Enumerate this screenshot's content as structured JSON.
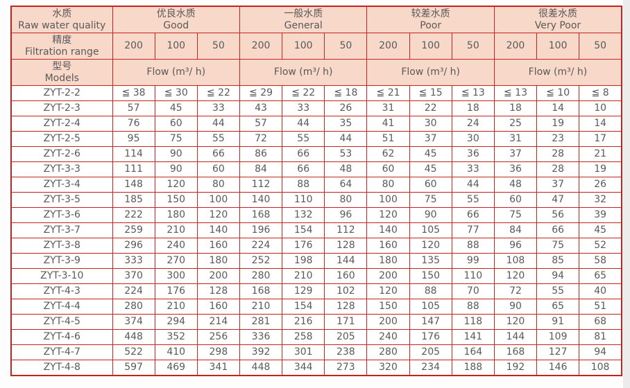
{
  "colors": {
    "grid_red": "#c5231d",
    "header_fill": "#f8d8c9",
    "text_gray": "#595959",
    "cell_white": "#ffffff",
    "gutter_gray": "#ececec"
  },
  "header": {
    "quality_label": {
      "zh": "水质",
      "en": "Raw water quality"
    },
    "filtration_label": {
      "zh": "精度",
      "en": "Filtration range"
    },
    "models_label": {
      "zh": "型号",
      "en": "Models"
    },
    "flow_label": "Flow (m³/ h)",
    "quality_groups": [
      {
        "zh": "优良水质",
        "en": "Good"
      },
      {
        "zh": "一般水质",
        "en": "General"
      },
      {
        "zh": "较差水质",
        "en": "Poor"
      },
      {
        "zh": "很差水质",
        "en": "Very Poor"
      }
    ],
    "filtration_values": [
      "200",
      "100",
      "50"
    ]
  },
  "rows": [
    {
      "model": "ZYT-2-2",
      "values": [
        "≦ 38",
        "≦ 30",
        "≦ 22",
        "≦ 29",
        "≦ 22",
        "≦ 18",
        "≦ 21",
        "≦ 15",
        "≦ 13",
        "≦ 13",
        "≦ 10",
        "≦ 8"
      ]
    },
    {
      "model": "ZYT-2-3",
      "values": [
        "57",
        "45",
        "33",
        "43",
        "33",
        "26",
        "31",
        "22",
        "18",
        "18",
        "14",
        "10"
      ]
    },
    {
      "model": "ZYT-2-4",
      "values": [
        "76",
        "60",
        "44",
        "57",
        "44",
        "35",
        "41",
        "30",
        "24",
        "25",
        "19",
        "14"
      ]
    },
    {
      "model": "ZYT-2-5",
      "values": [
        "95",
        "75",
        "55",
        "72",
        "55",
        "44",
        "51",
        "37",
        "30",
        "31",
        "23",
        "17"
      ]
    },
    {
      "model": "ZYT-2-6",
      "values": [
        "114",
        "90",
        "66",
        "86",
        "66",
        "53",
        "62",
        "45",
        "36",
        "37",
        "28",
        "21"
      ]
    },
    {
      "model": "ZYT-3-3",
      "values": [
        "111",
        "90",
        "60",
        "84",
        "66",
        "48",
        "60",
        "45",
        "33",
        "36",
        "28",
        "19"
      ]
    },
    {
      "model": "ZYT-3-4",
      "values": [
        "148",
        "120",
        "80",
        "112",
        "88",
        "64",
        "80",
        "60",
        "44",
        "48",
        "37",
        "26"
      ]
    },
    {
      "model": "ZYT-3-5",
      "values": [
        "185",
        "150",
        "100",
        "140",
        "110",
        "80",
        "100",
        "75",
        "55",
        "60",
        "47",
        "32"
      ]
    },
    {
      "model": "ZYT-3-6",
      "values": [
        "222",
        "180",
        "120",
        "168",
        "132",
        "96",
        "120",
        "90",
        "66",
        "75",
        "56",
        "39"
      ]
    },
    {
      "model": "ZYT-3-7",
      "values": [
        "259",
        "210",
        "140",
        "196",
        "154",
        "112",
        "140",
        "105",
        "77",
        "84",
        "66",
        "45"
      ]
    },
    {
      "model": "ZYT-3-8",
      "values": [
        "296",
        "240",
        "160",
        "224",
        "176",
        "128",
        "160",
        "120",
        "88",
        "96",
        "75",
        "52"
      ]
    },
    {
      "model": "ZYT-3-9",
      "values": [
        "333",
        "270",
        "180",
        "252",
        "198",
        "144",
        "180",
        "135",
        "99",
        "108",
        "85",
        "58"
      ]
    },
    {
      "model": "ZYT-3-10",
      "values": [
        "370",
        "300",
        "200",
        "280",
        "210",
        "160",
        "200",
        "150",
        "110",
        "120",
        "94",
        "65"
      ]
    },
    {
      "model": "ZYT-4-3",
      "values": [
        "224",
        "176",
        "128",
        "168",
        "129",
        "102",
        "120",
        "88",
        "70",
        "72",
        "55",
        "40"
      ]
    },
    {
      "model": "ZYT-4-4",
      "values": [
        "280",
        "210",
        "160",
        "210",
        "154",
        "128",
        "150",
        "105",
        "88",
        "90",
        "65",
        "51"
      ]
    },
    {
      "model": "ZYT-4-5",
      "values": [
        "374",
        "294",
        "214",
        "281",
        "216",
        "171",
        "200",
        "147",
        "118",
        "120",
        "91",
        "68"
      ]
    },
    {
      "model": "ZYT-4-6",
      "values": [
        "448",
        "352",
        "256",
        "336",
        "258",
        "205",
        "240",
        "176",
        "141",
        "144",
        "109",
        "81"
      ]
    },
    {
      "model": "ZYT-4-7",
      "values": [
        "522",
        "410",
        "298",
        "392",
        "301",
        "238",
        "280",
        "205",
        "164",
        "168",
        "127",
        "94"
      ]
    },
    {
      "model": "ZYT-4-8",
      "values": [
        "597",
        "469",
        "341",
        "448",
        "344",
        "273",
        "320",
        "234",
        "188",
        "192",
        "146",
        "108"
      ]
    }
  ],
  "chart_data": {
    "type": "table",
    "title": "ZYT model flow rates by raw water quality and filtration range",
    "row_header_label": "型号 Models",
    "unit": "Flow (m³/ h)",
    "column_groups": [
      {
        "group": "优良水质 Good",
        "subcolumns": [
          200,
          100,
          50
        ]
      },
      {
        "group": "一般水质 General",
        "subcolumns": [
          200,
          100,
          50
        ]
      },
      {
        "group": "较差水质 Poor",
        "subcolumns": [
          200,
          100,
          50
        ]
      },
      {
        "group": "很差水质 Very Poor",
        "subcolumns": [
          200,
          100,
          50
        ]
      }
    ],
    "rows": [
      {
        "model": "ZYT-2-2",
        "flows": [
          "≤38",
          "≤30",
          "≤22",
          "≤29",
          "≤22",
          "≤18",
          "≤21",
          "≤15",
          "≤13",
          "≤13",
          "≤10",
          "≤8"
        ]
      },
      {
        "model": "ZYT-2-3",
        "flows": [
          57,
          45,
          33,
          43,
          33,
          26,
          31,
          22,
          18,
          18,
          14,
          10
        ]
      },
      {
        "model": "ZYT-2-4",
        "flows": [
          76,
          60,
          44,
          57,
          44,
          35,
          41,
          30,
          24,
          25,
          19,
          14
        ]
      },
      {
        "model": "ZYT-2-5",
        "flows": [
          95,
          75,
          55,
          72,
          55,
          44,
          51,
          37,
          30,
          31,
          23,
          17
        ]
      },
      {
        "model": "ZYT-2-6",
        "flows": [
          114,
          90,
          66,
          86,
          66,
          53,
          62,
          45,
          36,
          37,
          28,
          21
        ]
      },
      {
        "model": "ZYT-3-3",
        "flows": [
          111,
          90,
          60,
          84,
          66,
          48,
          60,
          45,
          33,
          36,
          28,
          19
        ]
      },
      {
        "model": "ZYT-3-4",
        "flows": [
          148,
          120,
          80,
          112,
          88,
          64,
          80,
          60,
          44,
          48,
          37,
          26
        ]
      },
      {
        "model": "ZYT-3-5",
        "flows": [
          185,
          150,
          100,
          140,
          110,
          80,
          100,
          75,
          55,
          60,
          47,
          32
        ]
      },
      {
        "model": "ZYT-3-6",
        "flows": [
          222,
          180,
          120,
          168,
          132,
          96,
          120,
          90,
          66,
          75,
          56,
          39
        ]
      },
      {
        "model": "ZYT-3-7",
        "flows": [
          259,
          210,
          140,
          196,
          154,
          112,
          140,
          105,
          77,
          84,
          66,
          45
        ]
      },
      {
        "model": "ZYT-3-8",
        "flows": [
          296,
          240,
          160,
          224,
          176,
          128,
          160,
          120,
          88,
          96,
          75,
          52
        ]
      },
      {
        "model": "ZYT-3-9",
        "flows": [
          333,
          270,
          180,
          252,
          198,
          144,
          180,
          135,
          99,
          108,
          85,
          58
        ]
      },
      {
        "model": "ZYT-3-10",
        "flows": [
          370,
          300,
          200,
          280,
          210,
          160,
          200,
          150,
          110,
          120,
          94,
          65
        ]
      },
      {
        "model": "ZYT-4-3",
        "flows": [
          224,
          176,
          128,
          168,
          129,
          102,
          120,
          88,
          70,
          72,
          55,
          40
        ]
      },
      {
        "model": "ZYT-4-4",
        "flows": [
          280,
          210,
          160,
          210,
          154,
          128,
          150,
          105,
          88,
          90,
          65,
          51
        ]
      },
      {
        "model": "ZYT-4-5",
        "flows": [
          374,
          294,
          214,
          281,
          216,
          171,
          200,
          147,
          118,
          120,
          91,
          68
        ]
      },
      {
        "model": "ZYT-4-6",
        "flows": [
          448,
          352,
          256,
          336,
          258,
          205,
          240,
          176,
          141,
          144,
          109,
          81
        ]
      },
      {
        "model": "ZYT-4-7",
        "flows": [
          522,
          410,
          298,
          392,
          301,
          238,
          280,
          205,
          164,
          168,
          127,
          94
        ]
      },
      {
        "model": "ZYT-4-8",
        "flows": [
          597,
          469,
          341,
          448,
          344,
          273,
          320,
          234,
          188,
          192,
          146,
          108
        ]
      }
    ]
  }
}
